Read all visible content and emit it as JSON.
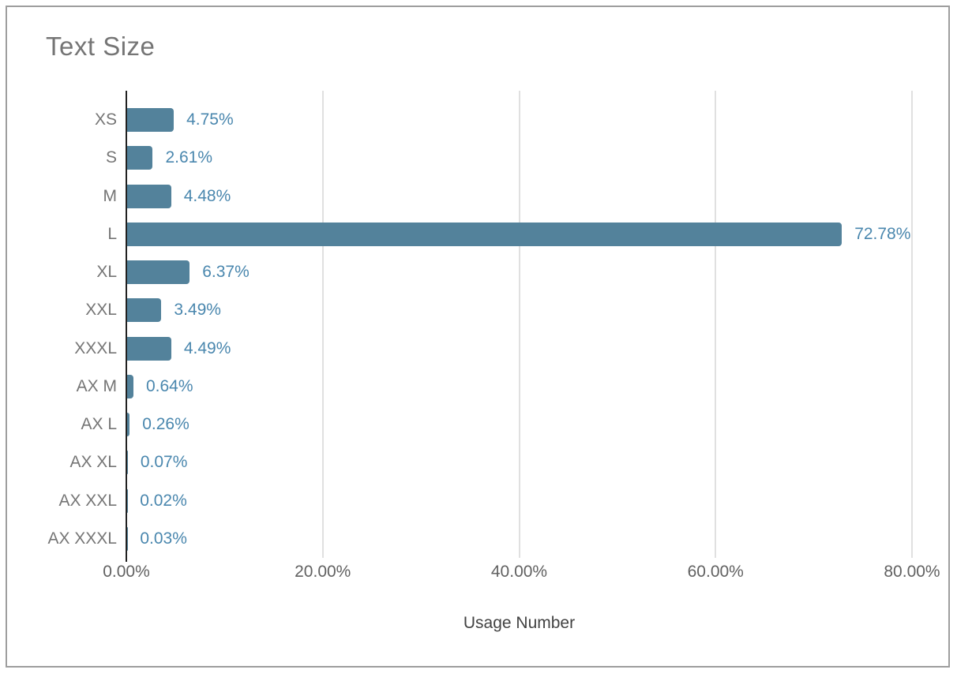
{
  "title": "Text Size",
  "colors": {
    "background": "#FFFFFF",
    "frame_border": "#9E9E9E",
    "title": "#757575",
    "category_label": "#757575",
    "value_label": "#4A87AE",
    "tick_label": "#616161",
    "axis_title": "#424242",
    "axis_line": "#212121",
    "gridline": "#E0E0E0",
    "bar": "#53829B"
  },
  "chart_data": {
    "type": "bar",
    "orientation": "horizontal",
    "title": "Text Size",
    "xlabel": "Usage Number",
    "ylabel": "",
    "categories": [
      "XS",
      "S",
      "M",
      "L",
      "XL",
      "XXL",
      "XXXL",
      "AX M",
      "AX L",
      "AX XL",
      "AX XXL",
      "AX XXXL"
    ],
    "values": [
      4.75,
      2.61,
      4.48,
      72.78,
      6.37,
      3.49,
      4.49,
      0.64,
      0.26,
      0.07,
      0.02,
      0.03
    ],
    "value_labels": [
      "4.75%",
      "2.61%",
      "4.48%",
      "72.78%",
      "6.37%",
      "3.49%",
      "4.49%",
      "0.64%",
      "0.26%",
      "0.07%",
      "0.02%",
      "0.03%"
    ],
    "x_ticks": [
      "0.00%",
      "20.00%",
      "40.00%",
      "60.00%",
      "80.00%"
    ],
    "x_tick_values": [
      0,
      20,
      40,
      60,
      80
    ],
    "xlim": [
      0,
      80
    ],
    "grid": true,
    "legend": "none"
  }
}
